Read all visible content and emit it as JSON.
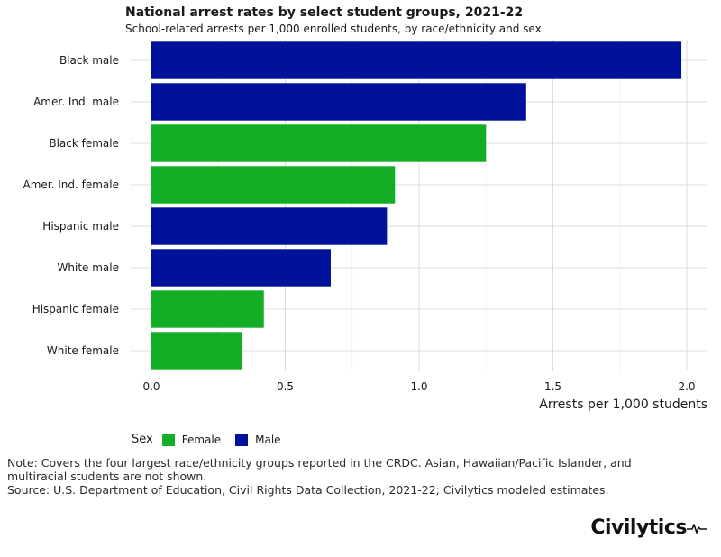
{
  "chart_data": {
    "type": "bar",
    "orientation": "horizontal",
    "title": "National arrest rates by select student groups, 2021-22",
    "subtitle": "School-related arrests per 1,000 enrolled students, by race/ethnicity and sex",
    "xlabel": "Arrests per 1,000 students",
    "ylabel": "",
    "xlim": [
      0,
      2.05
    ],
    "x_ticks": [
      "0.0",
      "0.5",
      "1.0",
      "1.5",
      "2.0"
    ],
    "x_tick_values": [
      0,
      0.5,
      1.0,
      1.5,
      2.0
    ],
    "grid": true,
    "legend_position": "bottom-left",
    "categories": [
      "Black male",
      "Amer. Ind. male",
      "Black female",
      "Amer. Ind. female",
      "Hispanic male",
      "White male",
      "Hispanic female",
      "White female"
    ],
    "values": [
      1.98,
      1.4,
      1.25,
      0.91,
      0.88,
      0.67,
      0.42,
      0.34
    ],
    "groups": [
      "Male",
      "Male",
      "Female",
      "Female",
      "Male",
      "Male",
      "Female",
      "Female"
    ],
    "legend": {
      "title": "Sex",
      "entries": [
        {
          "name": "Female",
          "color": "#13ae26"
        },
        {
          "name": "Male",
          "color": "#00129b"
        }
      ]
    }
  },
  "notes": {
    "line1": "Note: Covers the four largest race/ethnicity groups reported in the CRDC. Asian, Hawaiian/Pacific Islander, and",
    "line2": "multiracial students are not shown.",
    "line3": "Source: U.S. Department of Education, Civil Rights Data Collection, 2021-22; Civilytics modeled estimates."
  },
  "brand": {
    "name": "Civilytics",
    "icon": "heartbeat-line-icon"
  }
}
